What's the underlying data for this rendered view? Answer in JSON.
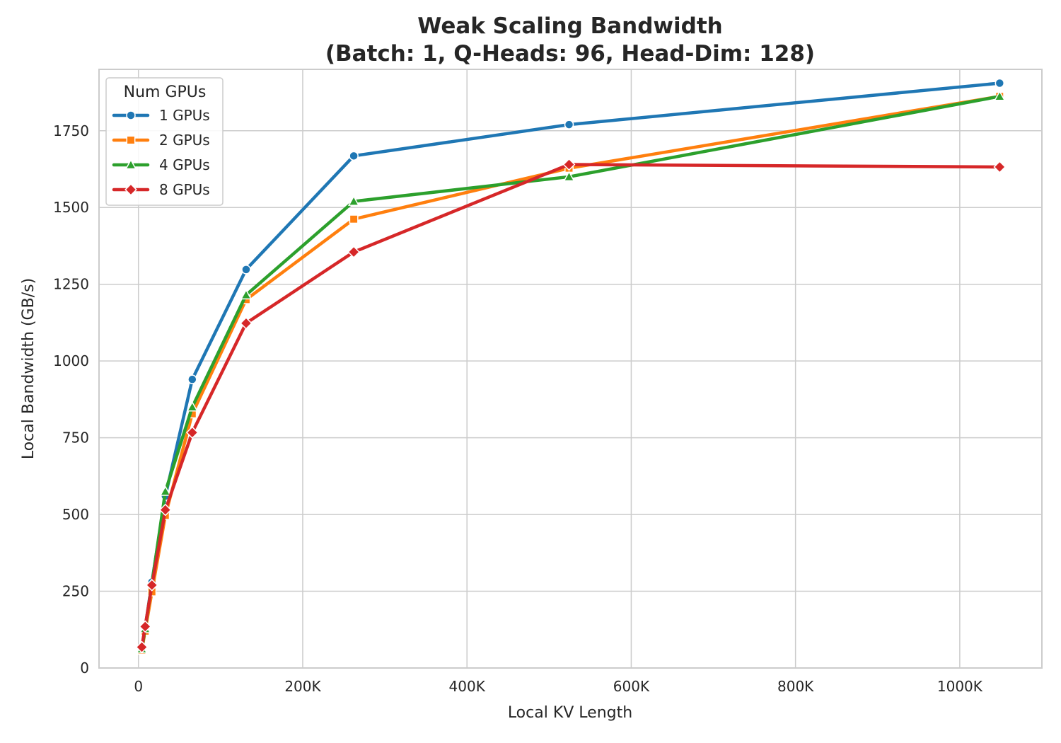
{
  "chart_data": {
    "type": "line",
    "title_line1": "Weak Scaling Bandwidth",
    "title_line2": "(Batch: 1, Q-Heads: 96, Head-Dim: 128)",
    "xlabel": "Local KV Length",
    "ylabel": "Local Bandwidth (GB/s)",
    "xlim": [
      -48000,
      1100000
    ],
    "ylim": [
      0,
      1950
    ],
    "x_ticks": [
      0,
      200000,
      400000,
      600000,
      800000,
      1000000
    ],
    "x_tick_labels": [
      "0",
      "200K",
      "400K",
      "600K",
      "800K",
      "1000K"
    ],
    "y_ticks": [
      0,
      250,
      500,
      750,
      1000,
      1250,
      1500,
      1750
    ],
    "y_tick_labels": [
      "0",
      "250",
      "500",
      "750",
      "1000",
      "1250",
      "1500",
      "1750"
    ],
    "grid": true,
    "legend": {
      "title": "Num GPUs",
      "placement": "top-left"
    },
    "series": [
      {
        "name": "1 GPUs",
        "color": "#1f77b4",
        "marker": "circle",
        "x": [
          4096,
          8192,
          16384,
          32768,
          65536,
          131072,
          262144,
          524288,
          1048576
        ],
        "y": [
          65,
          130,
          280,
          560,
          940,
          1298,
          1668,
          1770,
          1905
        ]
      },
      {
        "name": "2 GPUs",
        "color": "#ff7f0e",
        "marker": "square",
        "x": [
          4096,
          8192,
          16384,
          32768,
          65536,
          131072,
          262144,
          524288,
          1048576
        ],
        "y": [
          58,
          120,
          248,
          497,
          828,
          1200,
          1462,
          1628,
          1862
        ]
      },
      {
        "name": "4 GPUs",
        "color": "#2ca02c",
        "marker": "triangle",
        "x": [
          4096,
          8192,
          16384,
          32768,
          65536,
          131072,
          262144,
          524288,
          1048576
        ],
        "y": [
          62,
          128,
          275,
          575,
          850,
          1215,
          1520,
          1600,
          1862
        ]
      },
      {
        "name": "8 GPUs",
        "color": "#d62728",
        "marker": "diamond",
        "x": [
          4096,
          8192,
          16384,
          32768,
          65536,
          131072,
          262144,
          524288,
          1048576
        ],
        "y": [
          68,
          135,
          270,
          515,
          767,
          1123,
          1355,
          1640,
          1632
        ]
      }
    ]
  }
}
